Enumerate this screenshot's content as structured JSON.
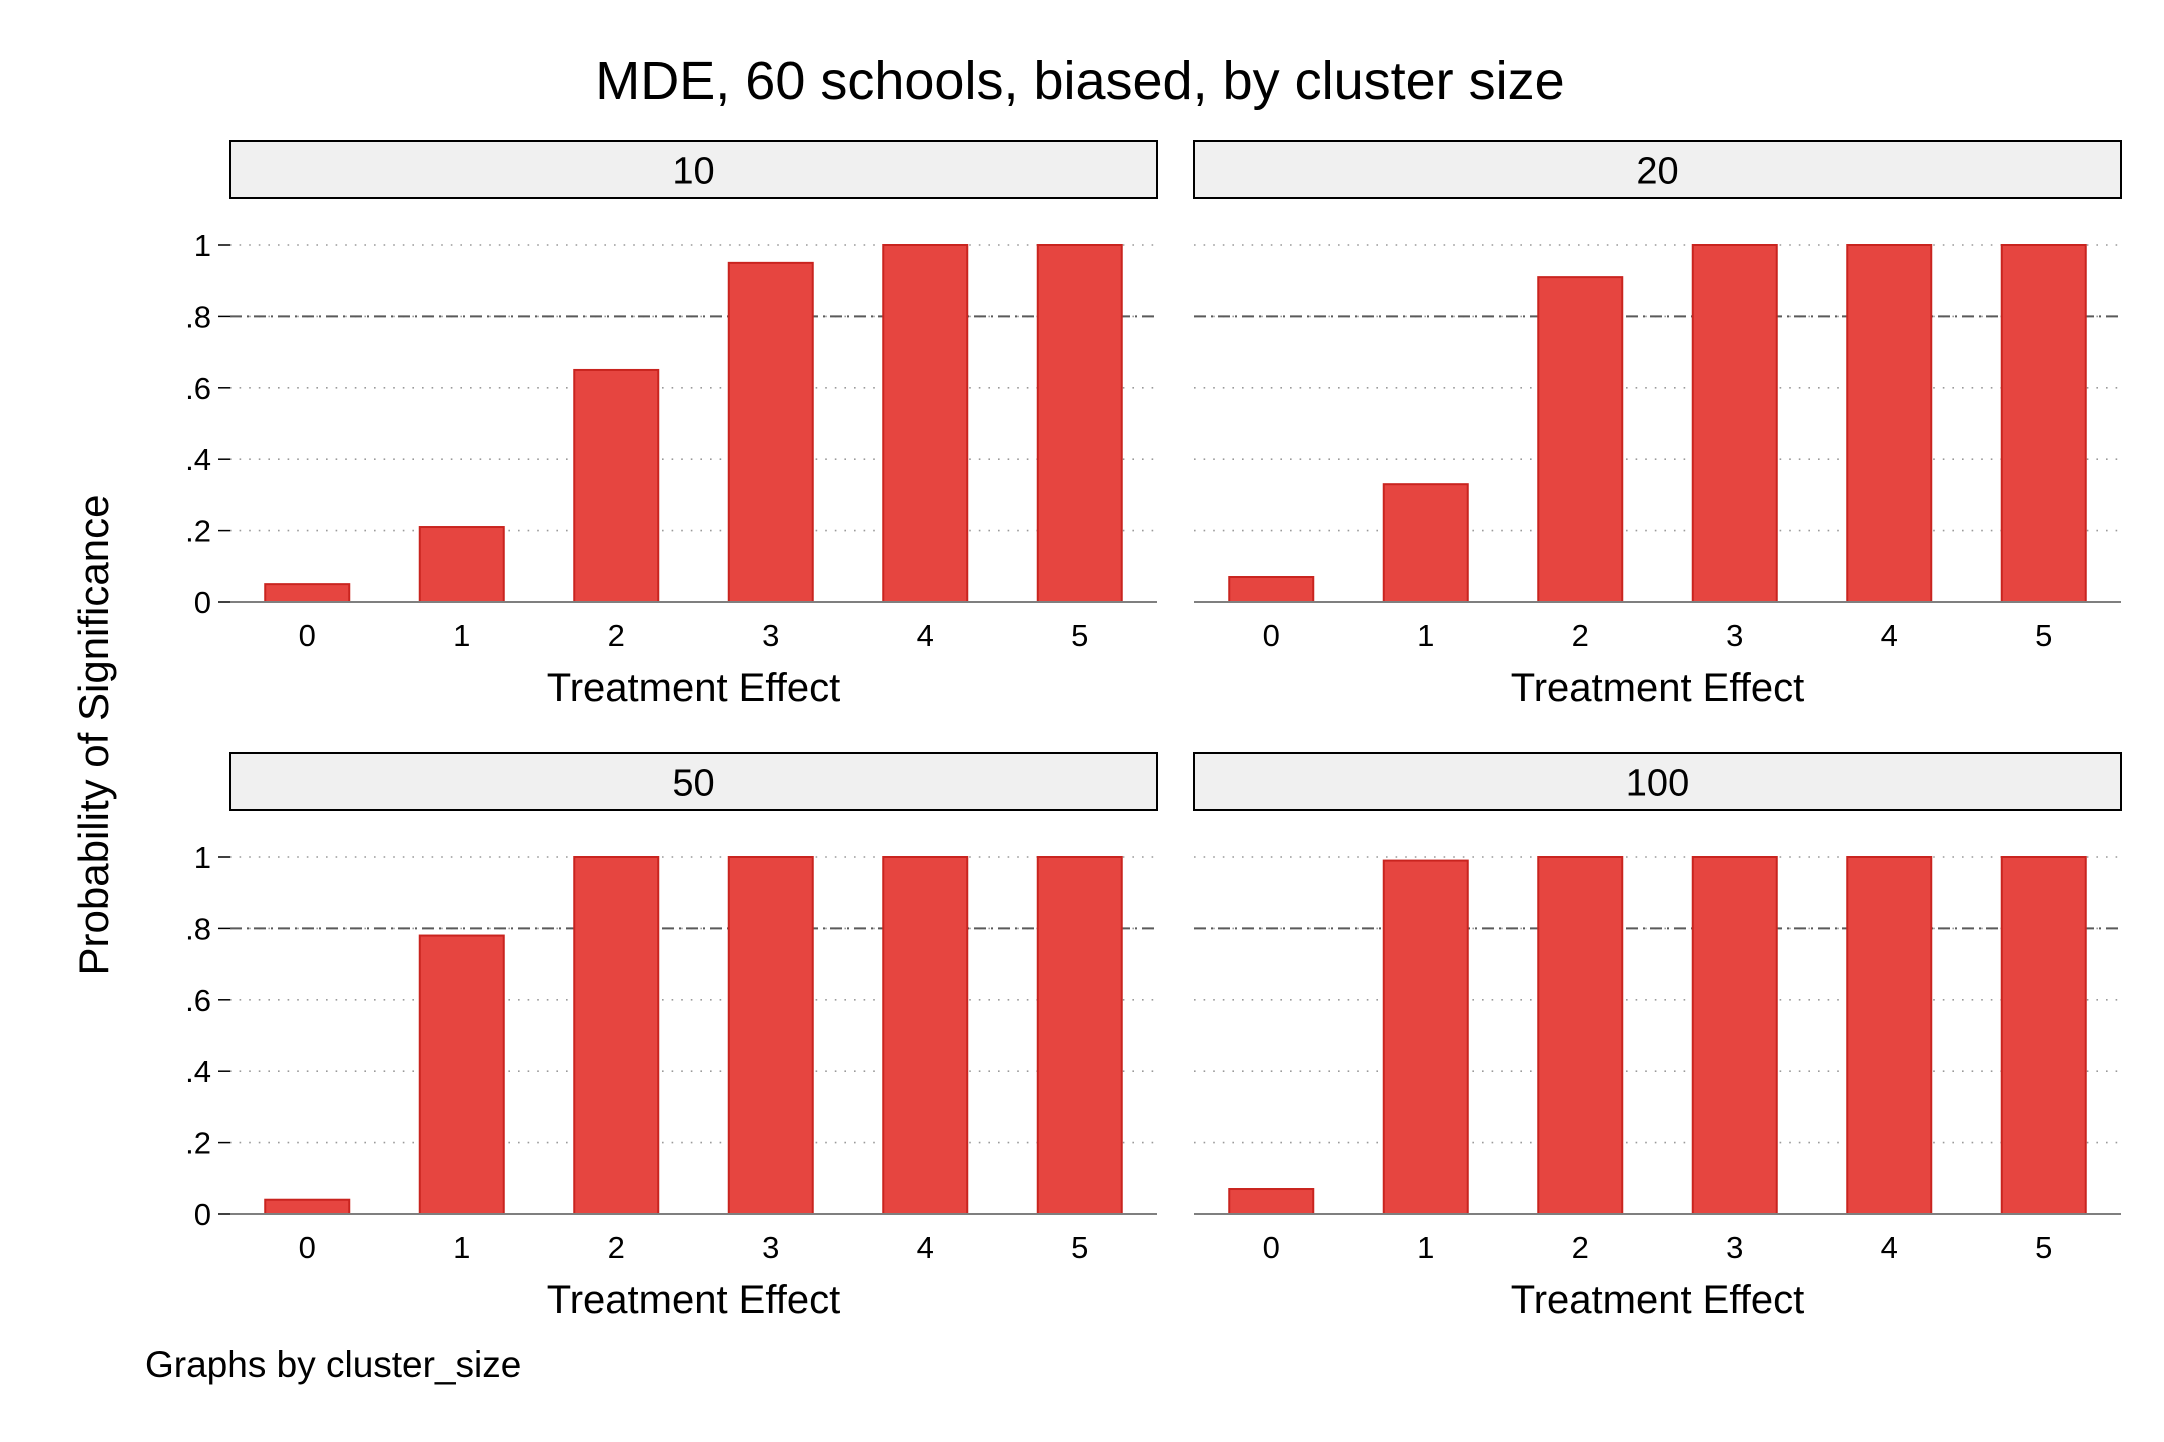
{
  "title": "MDE, 60 schools, biased, by cluster size",
  "ylabel": "Probability of Significance",
  "note": "Graphs by cluster_size",
  "colors": {
    "bar_fill": "#E64540",
    "bar_edge": "#C9241F",
    "strip_fill": "#F0F0F0",
    "grid": "#9A9A9A",
    "reference_line": "#5A5A5A"
  },
  "chart_data": [
    {
      "type": "bar",
      "panel_label": "10",
      "xlabel": "Treatment Effect",
      "categories": [
        "0",
        "1",
        "2",
        "3",
        "4",
        "5"
      ],
      "values": [
        0.05,
        0.21,
        0.65,
        0.95,
        1.0,
        1.0
      ],
      "ylim": [
        0,
        1
      ],
      "yticks": [
        0,
        0.2,
        0.4,
        0.6,
        0.8,
        1
      ],
      "ytick_labels": [
        "0",
        ".2",
        ".4",
        ".6",
        ".8",
        "1"
      ],
      "reference_y": 0.8,
      "grid": true
    },
    {
      "type": "bar",
      "panel_label": "20",
      "xlabel": "Treatment Effect",
      "categories": [
        "0",
        "1",
        "2",
        "3",
        "4",
        "5"
      ],
      "values": [
        0.07,
        0.33,
        0.91,
        1.0,
        1.0,
        1.0
      ],
      "ylim": [
        0,
        1
      ],
      "yticks": [
        0,
        0.2,
        0.4,
        0.6,
        0.8,
        1
      ],
      "ytick_labels": [
        "0",
        ".2",
        ".4",
        ".6",
        ".8",
        "1"
      ],
      "reference_y": 0.8,
      "grid": true
    },
    {
      "type": "bar",
      "panel_label": "50",
      "xlabel": "Treatment Effect",
      "categories": [
        "0",
        "1",
        "2",
        "3",
        "4",
        "5"
      ],
      "values": [
        0.04,
        0.78,
        1.0,
        1.0,
        1.0,
        1.0
      ],
      "ylim": [
        0,
        1
      ],
      "yticks": [
        0,
        0.2,
        0.4,
        0.6,
        0.8,
        1
      ],
      "ytick_labels": [
        "0",
        ".2",
        ".4",
        ".6",
        ".8",
        "1"
      ],
      "reference_y": 0.8,
      "grid": true
    },
    {
      "type": "bar",
      "panel_label": "100",
      "xlabel": "Treatment Effect",
      "categories": [
        "0",
        "1",
        "2",
        "3",
        "4",
        "5"
      ],
      "values": [
        0.07,
        0.99,
        1.0,
        1.0,
        1.0,
        1.0
      ],
      "ylim": [
        0,
        1
      ],
      "yticks": [
        0,
        0.2,
        0.4,
        0.6,
        0.8,
        1
      ],
      "ytick_labels": [
        "0",
        ".2",
        ".4",
        ".6",
        ".8",
        "1"
      ],
      "reference_y": 0.8,
      "grid": true
    }
  ]
}
